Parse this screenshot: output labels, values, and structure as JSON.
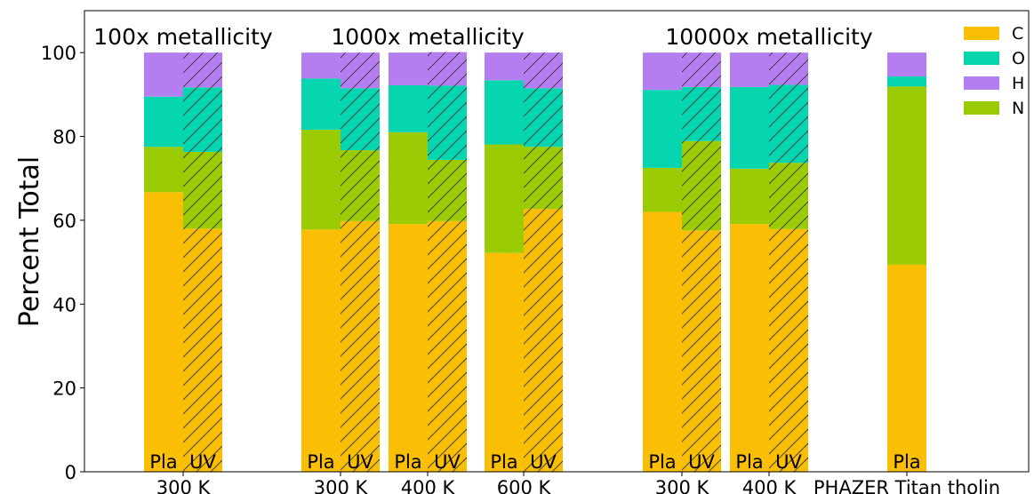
{
  "chart_data": {
    "type": "bar",
    "stacked": true,
    "title": "",
    "xlabel": "",
    "ylabel": "Percent Total",
    "ylim": [
      0,
      110
    ],
    "yticks": [
      0,
      20,
      40,
      60,
      80,
      100
    ],
    "grid": false,
    "legend": {
      "placement": "top-right",
      "entries": [
        {
          "name": "C",
          "color": "#FABE04"
        },
        {
          "name": "O",
          "color": "#06D6B0"
        },
        {
          "name": "H",
          "color": "#B57EF0"
        },
        {
          "name": "N",
          "color": "#9ACB03"
        }
      ]
    },
    "stack_order": [
      "C",
      "N",
      "O",
      "H"
    ],
    "colors": {
      "C": "#FABE04",
      "N": "#9ACB03",
      "O": "#06D6B0",
      "H": "#B57EF0"
    },
    "group_titles": [
      {
        "text": "100x metallicity",
        "anchor_category": 0
      },
      {
        "text": "1000x metallicity",
        "anchor_category": 2
      },
      {
        "text": "10000x metallicity",
        "anchor_category": 5
      }
    ],
    "categories": [
      {
        "label": "300 K",
        "bars": [
          {
            "label": "Pla",
            "hatched": false,
            "C": 66.7,
            "N": 10.8,
            "O": 12.0,
            "H": 10.5
          },
          {
            "label": "UV",
            "hatched": true,
            "C": 58.0,
            "N": 18.3,
            "O": 15.4,
            "H": 8.3
          }
        ]
      },
      {
        "label": "300 K",
        "bars": [
          {
            "label": "Pla",
            "hatched": false,
            "C": 57.8,
            "N": 23.8,
            "O": 12.2,
            "H": 6.2
          },
          {
            "label": "UV",
            "hatched": true,
            "C": 59.8,
            "N": 16.9,
            "O": 14.8,
            "H": 8.5
          }
        ]
      },
      {
        "label": "400 K",
        "bars": [
          {
            "label": "Pla",
            "hatched": false,
            "C": 59.1,
            "N": 21.9,
            "O": 11.2,
            "H": 7.8
          },
          {
            "label": "UV",
            "hatched": true,
            "C": 59.8,
            "N": 14.6,
            "O": 17.7,
            "H": 8.0
          }
        ]
      },
      {
        "label": "600 K",
        "bars": [
          {
            "label": "Pla",
            "hatched": false,
            "C": 52.2,
            "N": 25.9,
            "O": 15.3,
            "H": 6.6
          },
          {
            "label": "UV",
            "hatched": true,
            "C": 62.7,
            "N": 14.8,
            "O": 14.0,
            "H": 8.5
          }
        ]
      },
      {
        "label": "300 K",
        "bars": [
          {
            "label": "Pla",
            "hatched": false,
            "C": 62.0,
            "N": 10.5,
            "O": 18.6,
            "H": 8.9
          },
          {
            "label": "UV",
            "hatched": true,
            "C": 57.6,
            "N": 21.3,
            "O": 12.9,
            "H": 8.2
          }
        ]
      },
      {
        "label": "400 K",
        "bars": [
          {
            "label": "Pla",
            "hatched": false,
            "C": 59.1,
            "N": 13.2,
            "O": 19.5,
            "H": 8.2
          },
          {
            "label": "UV",
            "hatched": true,
            "C": 57.9,
            "N": 15.8,
            "O": 18.6,
            "H": 7.7
          }
        ]
      },
      {
        "label": "PHAZER Titan tholin",
        "bars": [
          {
            "label": "Pla",
            "hatched": false,
            "C": 49.4,
            "N": 42.5,
            "O": 2.4,
            "H": 5.7
          }
        ]
      }
    ]
  }
}
